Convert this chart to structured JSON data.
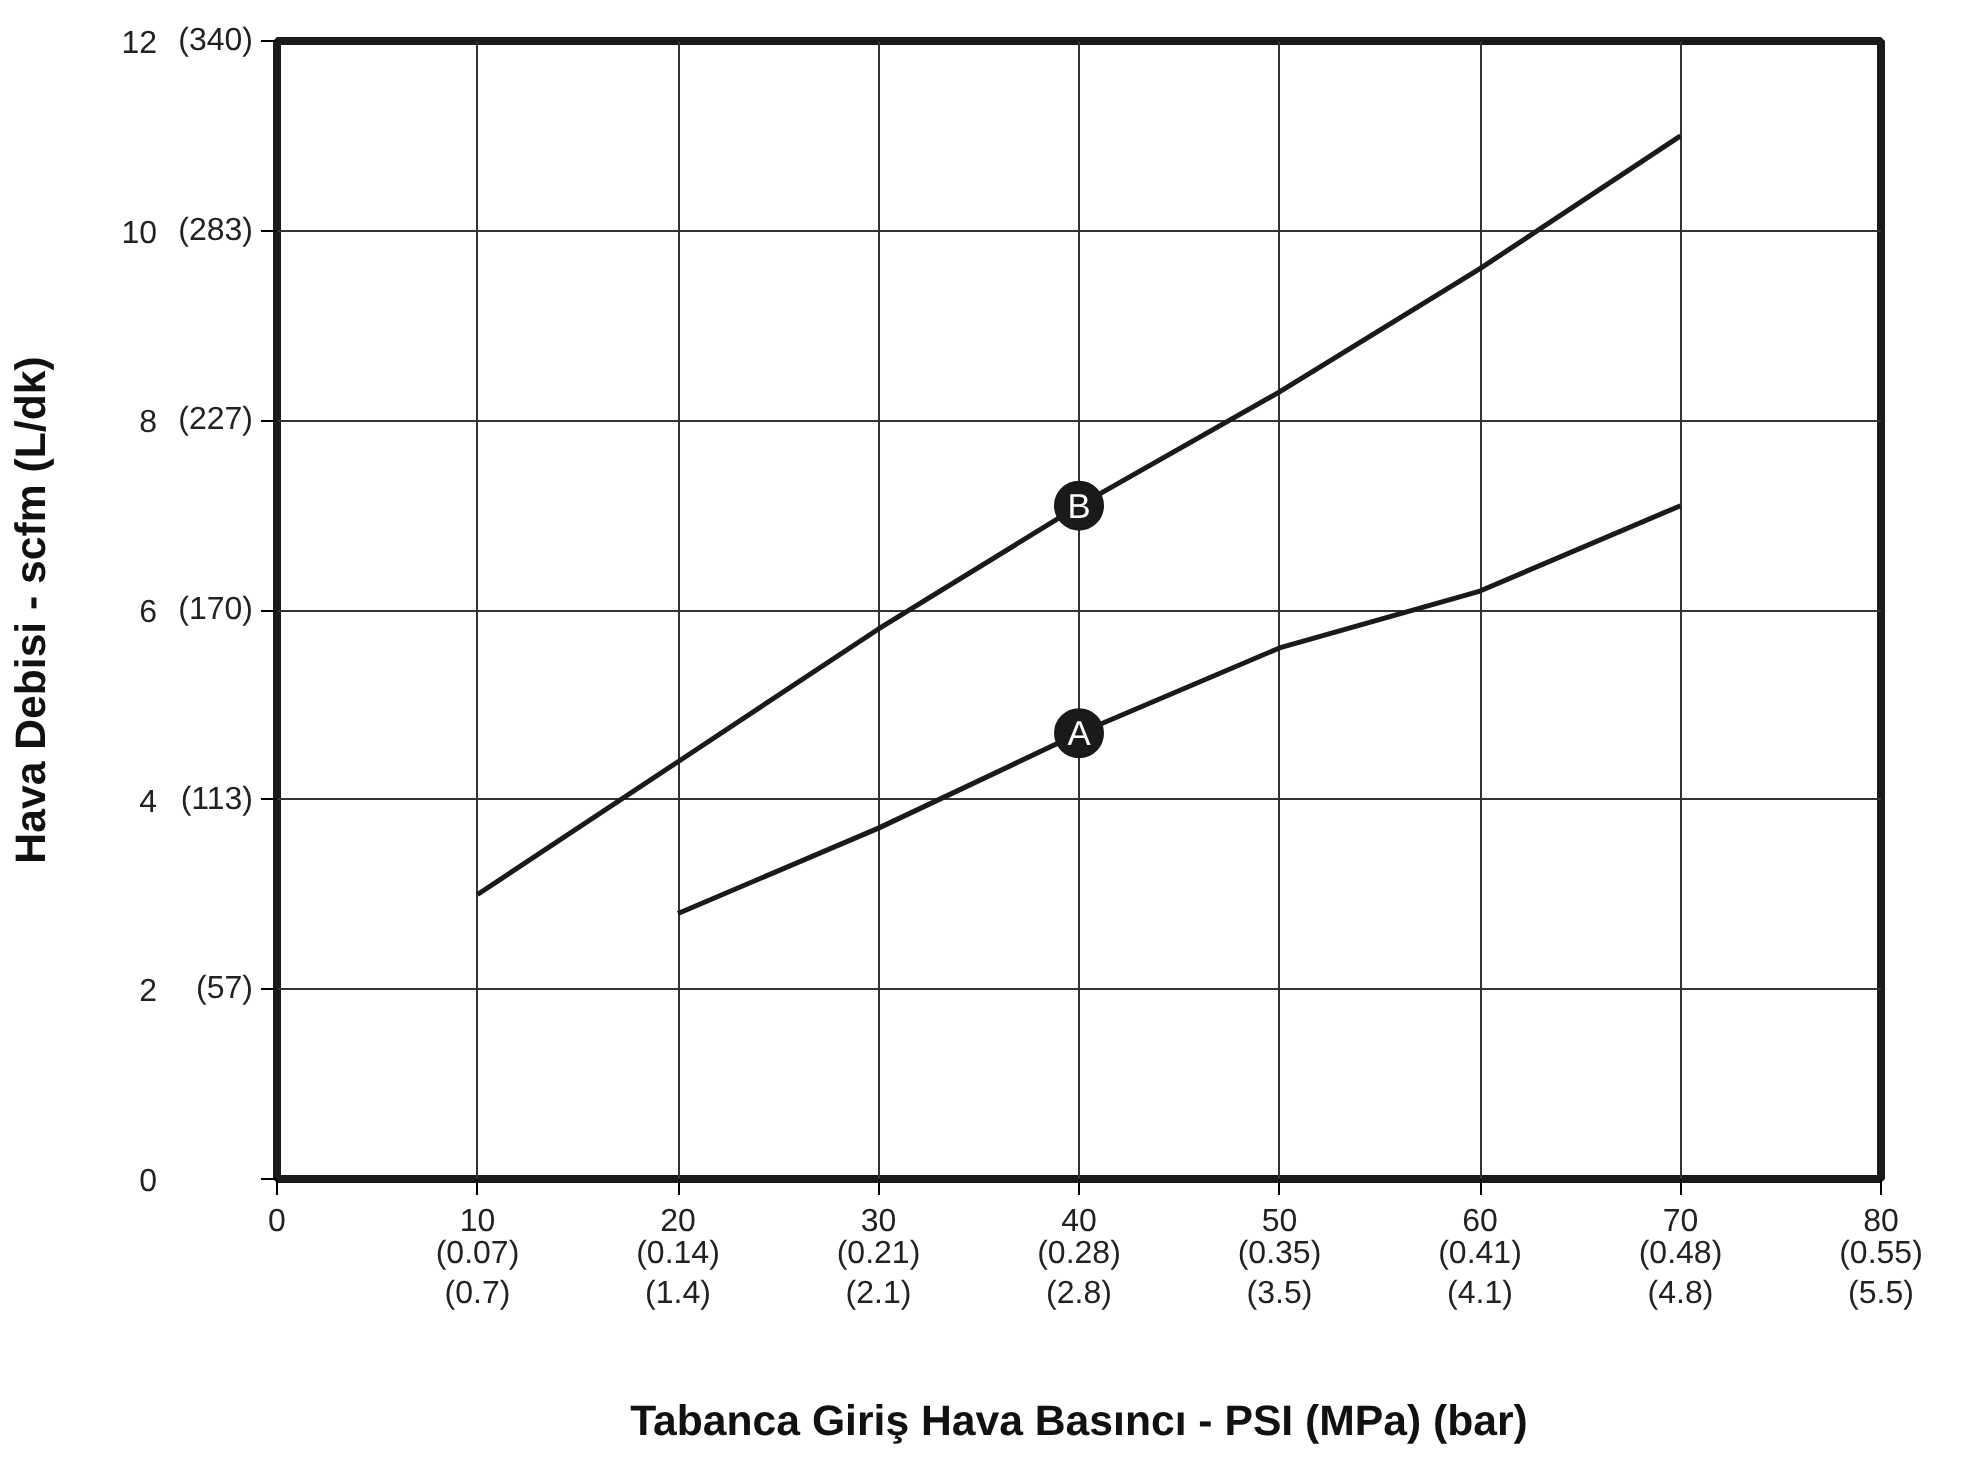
{
  "chart_data": {
    "type": "line",
    "xlabel": "Tabanca Giriş Hava Basıncı - PSI (MPa) (bar)",
    "ylabel": "Hava Debisi - scfm (L/dk)",
    "x": [
      10,
      20,
      30,
      40,
      50,
      60,
      70
    ],
    "series": [
      {
        "name": "A",
        "color": "#1a1a1a",
        "values": [
          null,
          2.8,
          3.7,
          4.7,
          5.6,
          6.2,
          7.1
        ]
      },
      {
        "name": "B",
        "color": "#1a1a1a",
        "values": [
          3.0,
          4.4,
          5.8,
          7.1,
          8.3,
          9.6,
          11.0
        ]
      }
    ],
    "xlim": [
      0,
      80
    ],
    "ylim": [
      0,
      12
    ],
    "xticks": [
      0,
      10,
      20,
      30,
      40,
      50,
      60,
      70,
      80
    ],
    "x2lim": [
      0,
      0.552
    ],
    "x2ticks": [
      {
        "value": 0.069,
        "label": "(0.07)"
      },
      {
        "value": 0.138,
        "label": "(0.14)"
      },
      {
        "value": 0.207,
        "label": "(0.21)"
      },
      {
        "value": 0.276,
        "label": "(0.28)"
      },
      {
        "value": 0.345,
        "label": "(0.35)"
      },
      {
        "value": 0.414,
        "label": "(0.41)"
      },
      {
        "value": 0.483,
        "label": "(0.48)"
      },
      {
        "value": 0.552,
        "label": "(0.55)"
      }
    ],
    "annotations": [
      "(0.7)",
      "(1.4)",
      "(2.1)",
      "(2.8)",
      "(3.5)",
      "(4.1)",
      "(4.8)",
      "(5.5)"
    ],
    "yticks": [
      0,
      2,
      4,
      6,
      8,
      10,
      12
    ],
    "y2lim": [
      0,
      339.8
    ],
    "y2ticks": [
      {
        "value": 0,
        "label": null
      },
      {
        "value": 56.6,
        "label": "(57)"
      },
      {
        "value": 113.3,
        "label": "(113)"
      },
      {
        "value": 169.9,
        "label": "(170)"
      },
      {
        "value": 226.5,
        "label": "(227)"
      },
      {
        "value": 283.2,
        "label": "(283)"
      },
      {
        "value": 339.8,
        "label": "(340)"
      }
    ],
    "grid": true
  }
}
